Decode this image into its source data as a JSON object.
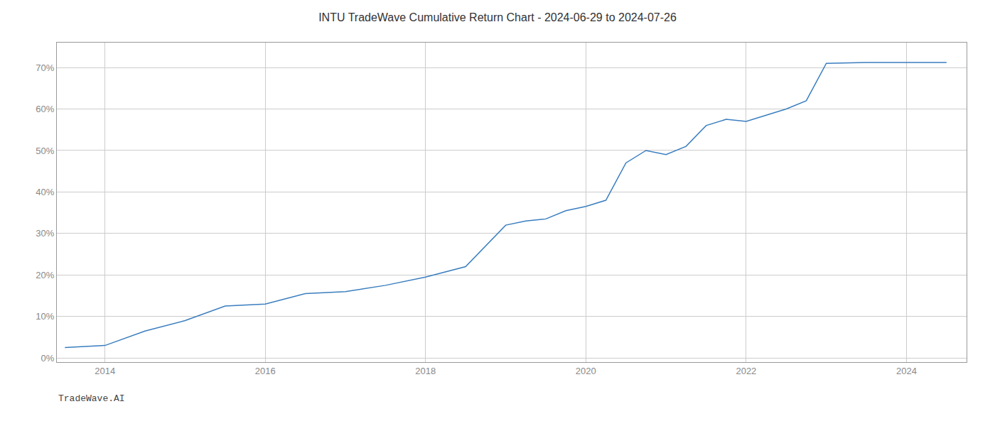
{
  "chart_data": {
    "type": "line",
    "title": "INTU TradeWave Cumulative Return Chart - 2024-06-29 to 2024-07-26",
    "annotations": [
      "TradeWave.AI"
    ],
    "x": [
      2013.5,
      2014.0,
      2014.5,
      2015.0,
      2015.5,
      2016.0,
      2016.5,
      2017.0,
      2017.5,
      2018.0,
      2018.5,
      2019.0,
      2019.25,
      2019.5,
      2019.75,
      2020.0,
      2020.25,
      2020.5,
      2020.75,
      2021.0,
      2021.25,
      2021.5,
      2021.75,
      2022.0,
      2022.25,
      2022.5,
      2022.75,
      2023.0,
      2023.5,
      2024.0,
      2024.5
    ],
    "values": [
      2.5,
      3.0,
      6.5,
      9.0,
      12.5,
      13.0,
      15.5,
      16.0,
      17.5,
      19.5,
      22.0,
      32.0,
      33.0,
      33.5,
      35.5,
      36.5,
      38.0,
      47.0,
      50.0,
      49.0,
      51.0,
      56.0,
      57.5,
      57.0,
      58.5,
      60.0,
      62.0,
      71.0,
      71.2,
      71.2,
      71.2
    ],
    "color": "#3a7ebf",
    "xlim": [
      2013.4,
      2024.75
    ],
    "xticks": [
      2014,
      2016,
      2018,
      2020,
      2022,
      2024
    ],
    "ylim": [
      -1,
      76
    ],
    "yticks": [
      {
        "value": 0,
        "label": "0%"
      },
      {
        "value": 10,
        "label": "10%"
      },
      {
        "value": 20,
        "label": "20%"
      },
      {
        "value": 30,
        "label": "30%"
      },
      {
        "value": 40,
        "label": "40%"
      },
      {
        "value": 50,
        "label": "50%"
      },
      {
        "value": 60,
        "label": "60%"
      },
      {
        "value": 70,
        "label": "70%"
      }
    ],
    "grid": true
  }
}
